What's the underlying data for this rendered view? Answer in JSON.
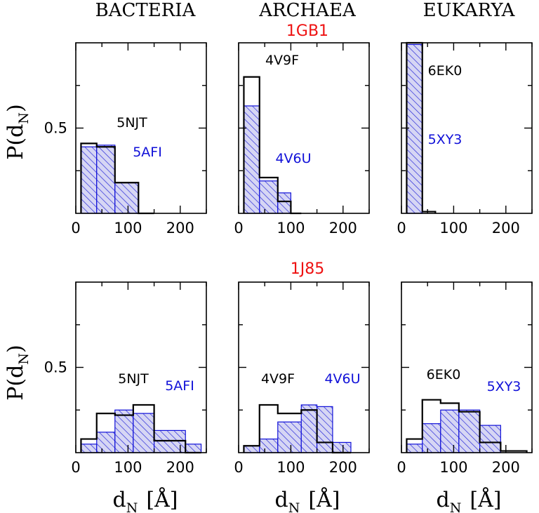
{
  "column_titles": [
    "BACTERIA",
    "ARCHAEA",
    "EUKARYA"
  ],
  "row_titles": [
    "1GB1",
    "1J85"
  ],
  "y_label": "P(d",
  "y_label_sub": "N",
  "y_label_close": ")",
  "x_label": "d",
  "x_label_sub": "N",
  "x_label_unit": "[Å]",
  "colors": {
    "black": "#000000",
    "blue": "#1010d8",
    "hatch": "#2a2ad8",
    "fill": "#d6d6f4",
    "red": "#ee1111"
  },
  "chart_data": [
    {
      "type": "histogram",
      "row": 0,
      "col": 0,
      "xlim": [
        0,
        250
      ],
      "ylim": [
        0,
        1.0
      ],
      "xticks": [
        0,
        100,
        200
      ],
      "yticks": [
        0.5
      ],
      "ytick_labels": [
        "0.5"
      ],
      "black": {
        "label": "5NJT",
        "edges": [
          10,
          40,
          75,
          120,
          150
        ],
        "values": [
          0.41,
          0.39,
          0.18,
          0.0
        ]
      },
      "blue": {
        "label": "5AFI",
        "edges": [
          10,
          40,
          75,
          120,
          150
        ],
        "values": [
          0.39,
          0.4,
          0.18,
          0.0
        ]
      }
    },
    {
      "type": "histogram",
      "row": 0,
      "col": 1,
      "xlim": [
        0,
        250
      ],
      "ylim": [
        0,
        1.0
      ],
      "xticks": [
        0,
        100,
        200
      ],
      "yticks": [
        0.5
      ],
      "ytick_labels": [
        "0.5"
      ],
      "black": {
        "label": "4V9F",
        "edges": [
          10,
          40,
          75,
          100,
          120
        ],
        "values": [
          0.8,
          0.21,
          0.07,
          0.0
        ]
      },
      "blue": {
        "label": "4V6U",
        "edges": [
          10,
          40,
          75,
          100,
          120
        ],
        "values": [
          0.63,
          0.19,
          0.12,
          0.0
        ]
      }
    },
    {
      "type": "histogram",
      "row": 0,
      "col": 2,
      "xlim": [
        0,
        250
      ],
      "ylim": [
        0,
        1.0
      ],
      "xticks": [
        0,
        100,
        200
      ],
      "yticks": [
        0.5
      ],
      "ytick_labels": [
        "0.5"
      ],
      "black": {
        "label": "6EK0",
        "edges": [
          10,
          40,
          65
        ],
        "values": [
          1.0,
          0.01
        ]
      },
      "blue": {
        "label": "5XY3",
        "edges": [
          10,
          40,
          65
        ],
        "values": [
          0.99,
          0.0
        ]
      }
    },
    {
      "type": "histogram",
      "row": 1,
      "col": 0,
      "xlim": [
        0,
        250
      ],
      "ylim": [
        0,
        1.0
      ],
      "xticks": [
        0,
        100,
        200
      ],
      "yticks": [
        0.5
      ],
      "ytick_labels": [
        "0.5"
      ],
      "black": {
        "label": "5NJT",
        "edges": [
          10,
          40,
          75,
          110,
          150,
          210,
          240
        ],
        "values": [
          0.08,
          0.23,
          0.22,
          0.28,
          0.07,
          0.0
        ]
      },
      "blue": {
        "label": "5AFI",
        "edges": [
          10,
          40,
          75,
          110,
          150,
          210,
          240
        ],
        "values": [
          0.05,
          0.12,
          0.25,
          0.23,
          0.13,
          0.05
        ]
      }
    },
    {
      "type": "histogram",
      "row": 1,
      "col": 1,
      "xlim": [
        0,
        250
      ],
      "ylim": [
        0,
        1.0
      ],
      "xticks": [
        0,
        100,
        200
      ],
      "yticks": [
        0.5
      ],
      "ytick_labels": [
        "0.5"
      ],
      "black": {
        "label": "4V9F",
        "edges": [
          10,
          40,
          75,
          120,
          150,
          180,
          215
        ],
        "values": [
          0.04,
          0.28,
          0.23,
          0.25,
          0.06,
          0.0
        ]
      },
      "blue": {
        "label": "4V6U",
        "edges": [
          10,
          40,
          75,
          120,
          150,
          180,
          215
        ],
        "values": [
          0.04,
          0.08,
          0.18,
          0.28,
          0.27,
          0.06
        ]
      }
    },
    {
      "type": "histogram",
      "row": 1,
      "col": 2,
      "xlim": [
        0,
        250
      ],
      "ylim": [
        0,
        1.0
      ],
      "xticks": [
        0,
        100,
        200
      ],
      "yticks": [
        0.5
      ],
      "ytick_labels": [
        "0.5"
      ],
      "black": {
        "label": "6EK0",
        "edges": [
          10,
          40,
          75,
          110,
          150,
          190,
          240
        ],
        "values": [
          0.08,
          0.31,
          0.29,
          0.24,
          0.06,
          0.01
        ]
      },
      "blue": {
        "label": "5XY3",
        "edges": [
          10,
          40,
          75,
          110,
          150,
          190,
          240
        ],
        "values": [
          0.05,
          0.17,
          0.25,
          0.25,
          0.16,
          0.0
        ]
      }
    }
  ]
}
